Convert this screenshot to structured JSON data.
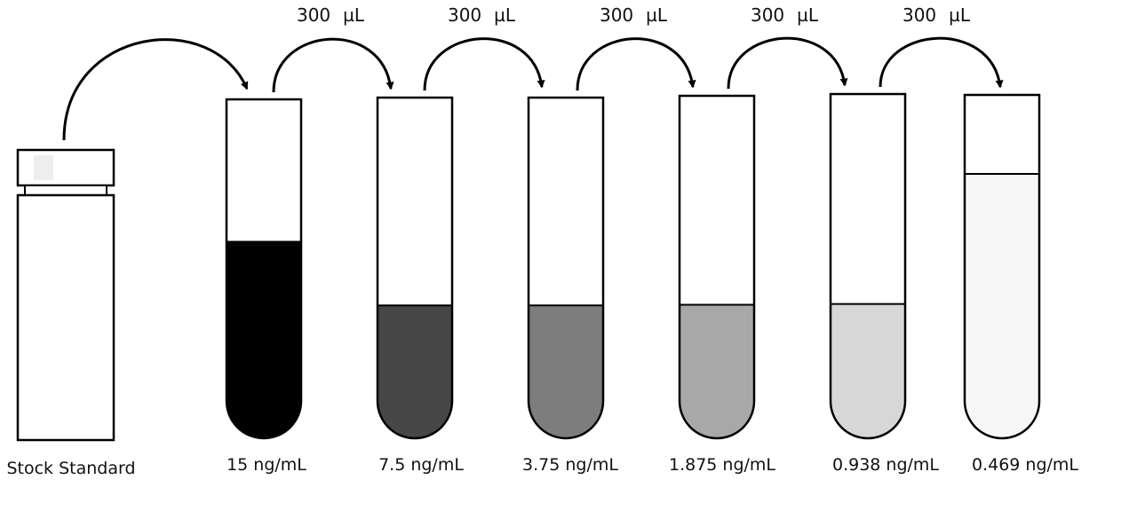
{
  "stock": {
    "label": "Stock Standard"
  },
  "tubes": [
    {
      "label": "15 ng/mL",
      "fill_color": "#000000",
      "fill_level": 0.58
    },
    {
      "label": "7.5 ng/mL",
      "fill_color": "#464646",
      "fill_level": 0.39
    },
    {
      "label": "3.75 ng/mL",
      "fill_color": "#7d7d7d",
      "fill_level": 0.39
    },
    {
      "label": "1.875 ng/mL",
      "fill_color": "#a8a8a8",
      "fill_level": 0.39
    },
    {
      "label": "0.938 ng/mL",
      "fill_color": "#d7d7d7",
      "fill_level": 0.39
    },
    {
      "label": "0.469 ng/mL",
      "fill_color": "#f7f7f7",
      "fill_level": 0.77
    }
  ],
  "transfers": [
    {
      "volume": "300",
      "unit": "µL"
    },
    {
      "volume": "300",
      "unit": "µL"
    },
    {
      "volume": "300",
      "unit": "µL"
    },
    {
      "volume": "300",
      "unit": "µL"
    },
    {
      "volume": "300",
      "unit": "µL"
    }
  ]
}
